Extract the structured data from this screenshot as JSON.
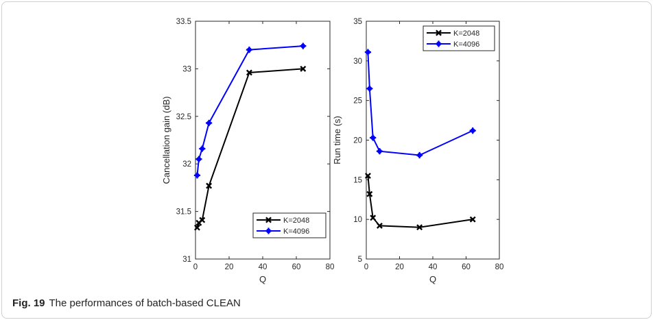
{
  "caption": {
    "label": "Fig. 19",
    "text": "The performances of batch-based CLEAN"
  },
  "chart_data": [
    {
      "type": "line",
      "xlabel": "Q",
      "ylabel": "Cancellation gain (dB)",
      "xlim": [
        0,
        80
      ],
      "ylim": [
        31,
        33.5
      ],
      "xticks": [
        "0",
        "20",
        "40",
        "60",
        "80"
      ],
      "yticks": [
        "31",
        "31.5",
        "32",
        "32.5",
        "33",
        "33.5"
      ],
      "legend_position": "bottom-right",
      "x": [
        1,
        2,
        4,
        8,
        32,
        64
      ],
      "series": [
        {
          "name": "K=2048",
          "color": "#000000",
          "marker": "x",
          "values": [
            31.33,
            31.38,
            31.41,
            31.77,
            32.96,
            33.0
          ]
        },
        {
          "name": "K=4096",
          "color": "#0000ff",
          "marker": "star",
          "values": [
            31.88,
            32.05,
            32.16,
            32.43,
            33.2,
            33.24
          ]
        }
      ]
    },
    {
      "type": "line",
      "xlabel": "Q",
      "ylabel": "Run time (s)",
      "xlim": [
        0,
        80
      ],
      "ylim": [
        5,
        35
      ],
      "xticks": [
        "0",
        "20",
        "40",
        "60",
        "80"
      ],
      "yticks": [
        "5",
        "10",
        "15",
        "20",
        "25",
        "30",
        "35"
      ],
      "legend_position": "top-right",
      "x": [
        1,
        2,
        4,
        8,
        32,
        64
      ],
      "series": [
        {
          "name": "K=2048",
          "color": "#000000",
          "marker": "x",
          "values": [
            15.5,
            13.2,
            10.2,
            9.2,
            9.0,
            10.0
          ]
        },
        {
          "name": "K=4096",
          "color": "#0000ff",
          "marker": "star",
          "values": [
            31.1,
            26.5,
            20.3,
            18.6,
            18.1,
            21.2
          ]
        }
      ]
    }
  ]
}
